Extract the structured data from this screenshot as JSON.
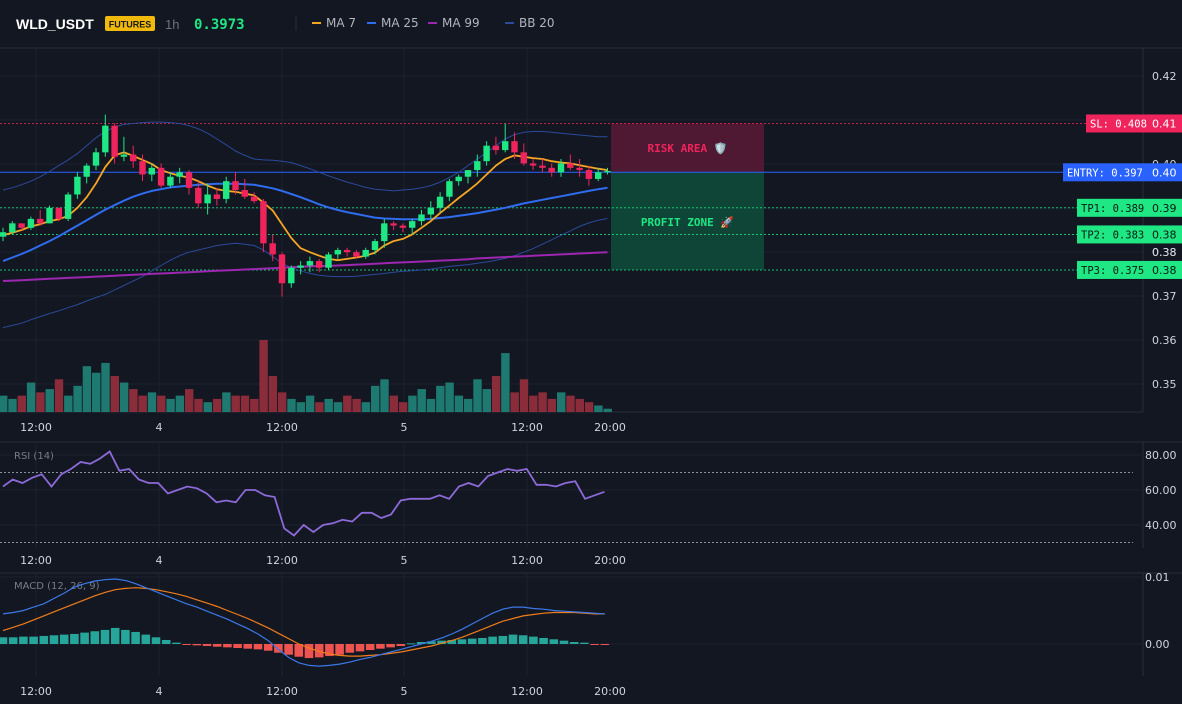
{
  "header": {
    "symbol": "WLD_USDT",
    "badge": "FUTURES",
    "interval": "1h",
    "price": "0.3973",
    "indicators": [
      {
        "label": "MA 7",
        "color": "#f5a623"
      },
      {
        "label": "MA 25",
        "color": "#2f6df0"
      },
      {
        "label": "MA 99",
        "color": "#9c27b0"
      },
      {
        "label": "BB 20",
        "color": "#2a4a9a"
      }
    ]
  },
  "colors": {
    "up": "#1ee783",
    "down": "#f0245c",
    "upVol": "#1e7a70",
    "downVol": "#8a2c3a",
    "ma7": "#f5a623",
    "ma25": "#2f6df0",
    "ma99": "#9c27b0",
    "bb": "#2a4a9a",
    "rsi": "#8c6ad8",
    "macd": "#3b78e7",
    "signal": "#f07d1a",
    "histUp": "#26a69a",
    "histDown": "#ef5350",
    "entry": "#2962ff",
    "sl": "#f0245c",
    "tp": "#1ee783"
  },
  "zones": {
    "risk_label": "RISK AREA 🛡️",
    "profit_label": "PROFIT ZONE 🚀"
  },
  "chart_data": [
    {
      "type": "candlestick",
      "yaxis_ticks": [
        "0.42",
        "0.41",
        "0.40",
        "0.38",
        "0.38",
        "0.37",
        "0.36",
        "0.35"
      ],
      "xaxis_ticks": [
        "12:00",
        "4",
        "12:00",
        "5",
        "12:00",
        "20:00"
      ],
      "ylim": [
        0.343,
        0.425
      ],
      "levels": [
        {
          "name": "SL",
          "label": "SL: 0.408",
          "value": 0.408,
          "axis_label": "0.41"
        },
        {
          "name": "ENTRY",
          "label": "ENTRY: 0.397",
          "value": 0.397,
          "axis_label": "0.40"
        },
        {
          "name": "TP1",
          "label": "TP1: 0.389",
          "value": 0.389,
          "axis_label": "0.39"
        },
        {
          "name": "TP2",
          "label": "TP2: 0.383",
          "value": 0.383,
          "axis_label": "0.38"
        },
        {
          "name": "TP3",
          "label": "TP3: 0.375",
          "value": 0.375,
          "axis_label": "0.38"
        }
      ],
      "candles": [
        [
          0.3825,
          0.3845,
          0.3815,
          0.3835
        ],
        [
          0.3835,
          0.386,
          0.383,
          0.3855
        ],
        [
          0.3855,
          0.3855,
          0.384,
          0.3845
        ],
        [
          0.3845,
          0.387,
          0.384,
          0.3865
        ],
        [
          0.3865,
          0.3885,
          0.385,
          0.3855
        ],
        [
          0.3855,
          0.3895,
          0.3855,
          0.389
        ],
        [
          0.389,
          0.389,
          0.386,
          0.3865
        ],
        [
          0.3865,
          0.3925,
          0.386,
          0.392
        ],
        [
          0.392,
          0.397,
          0.391,
          0.396
        ],
        [
          0.396,
          0.399,
          0.3945,
          0.3985
        ],
        [
          0.3985,
          0.4025,
          0.3975,
          0.4015
        ],
        [
          0.4015,
          0.41,
          0.4005,
          0.4075
        ],
        [
          0.4075,
          0.408,
          0.399,
          0.4005
        ],
        [
          0.4005,
          0.405,
          0.3995,
          0.401
        ],
        [
          0.401,
          0.403,
          0.398,
          0.3995
        ],
        [
          0.3995,
          0.401,
          0.395,
          0.3965
        ],
        [
          0.3965,
          0.399,
          0.395,
          0.398
        ],
        [
          0.398,
          0.399,
          0.3935,
          0.394
        ],
        [
          0.394,
          0.397,
          0.3935,
          0.396
        ],
        [
          0.396,
          0.398,
          0.3945,
          0.397
        ],
        [
          0.397,
          0.3975,
          0.392,
          0.3935
        ],
        [
          0.3935,
          0.395,
          0.389,
          0.39
        ],
        [
          0.39,
          0.3945,
          0.3875,
          0.392
        ],
        [
          0.392,
          0.3935,
          0.3895,
          0.391
        ],
        [
          0.391,
          0.396,
          0.39,
          0.395
        ],
        [
          0.395,
          0.397,
          0.392,
          0.393
        ],
        [
          0.393,
          0.3955,
          0.391,
          0.3915
        ],
        [
          0.3915,
          0.3925,
          0.39,
          0.3905
        ],
        [
          0.3905,
          0.391,
          0.379,
          0.381
        ],
        [
          0.381,
          0.383,
          0.377,
          0.3785
        ],
        [
          0.3785,
          0.379,
          0.369,
          0.372
        ],
        [
          0.372,
          0.376,
          0.371,
          0.3755
        ],
        [
          0.3755,
          0.377,
          0.374,
          0.376
        ],
        [
          0.376,
          0.378,
          0.3745,
          0.377
        ],
        [
          0.377,
          0.3775,
          0.3745,
          0.3755
        ],
        [
          0.3755,
          0.379,
          0.375,
          0.3785
        ],
        [
          0.3785,
          0.38,
          0.3775,
          0.3795
        ],
        [
          0.3795,
          0.38,
          0.378,
          0.379
        ],
        [
          0.379,
          0.3795,
          0.3775,
          0.378
        ],
        [
          0.378,
          0.38,
          0.3775,
          0.3795
        ],
        [
          0.3795,
          0.382,
          0.3785,
          0.3815
        ],
        [
          0.3815,
          0.3865,
          0.38,
          0.3855
        ],
        [
          0.3855,
          0.386,
          0.384,
          0.385
        ],
        [
          0.385,
          0.3855,
          0.3835,
          0.3845
        ],
        [
          0.3845,
          0.3865,
          0.383,
          0.386
        ],
        [
          0.386,
          0.3885,
          0.385,
          0.3875
        ],
        [
          0.3875,
          0.3905,
          0.3865,
          0.389
        ],
        [
          0.389,
          0.3925,
          0.388,
          0.3915
        ],
        [
          0.3915,
          0.3955,
          0.3905,
          0.395
        ],
        [
          0.395,
          0.3965,
          0.394,
          0.396
        ],
        [
          0.396,
          0.3975,
          0.3945,
          0.3975
        ],
        [
          0.3975,
          0.401,
          0.396,
          0.3995
        ],
        [
          0.3995,
          0.404,
          0.3985,
          0.403
        ],
        [
          0.403,
          0.405,
          0.401,
          0.402
        ],
        [
          0.402,
          0.408,
          0.4015,
          0.404
        ],
        [
          0.404,
          0.406,
          0.4,
          0.4015
        ],
        [
          0.4015,
          0.4035,
          0.3985,
          0.399
        ],
        [
          0.399,
          0.4,
          0.3975,
          0.3985
        ],
        [
          0.3985,
          0.4,
          0.397,
          0.398
        ],
        [
          0.398,
          0.399,
          0.396,
          0.397
        ],
        [
          0.397,
          0.4,
          0.396,
          0.399
        ],
        [
          0.399,
          0.401,
          0.3975,
          0.398
        ],
        [
          0.398,
          0.4,
          0.396,
          0.3975
        ],
        [
          0.3975,
          0.3985,
          0.394,
          0.3955
        ],
        [
          0.3955,
          0.398,
          0.395,
          0.397
        ],
        [
          0.397,
          0.398,
          0.3965,
          0.3973
        ]
      ],
      "volume": [
        10,
        8,
        10,
        18,
        12,
        14,
        20,
        10,
        16,
        28,
        24,
        30,
        22,
        18,
        14,
        10,
        12,
        10,
        8,
        10,
        14,
        8,
        6,
        8,
        12,
        10,
        10,
        8,
        44,
        22,
        12,
        8,
        6,
        10,
        6,
        8,
        6,
        10,
        8,
        6,
        16,
        20,
        10,
        6,
        10,
        14,
        8,
        16,
        18,
        10,
        8,
        20,
        14,
        22,
        36,
        12,
        20,
        10,
        12,
        8,
        12,
        10,
        8,
        6,
        4,
        2
      ],
      "ma7": [
        0.3828,
        0.3834,
        0.384,
        0.3848,
        0.3853,
        0.386,
        0.3864,
        0.3872,
        0.389,
        0.3914,
        0.3945,
        0.3982,
        0.4008,
        0.4015,
        0.4007,
        0.3998,
        0.3989,
        0.3975,
        0.3968,
        0.3962,
        0.3958,
        0.395,
        0.394,
        0.3932,
        0.3928,
        0.3926,
        0.3922,
        0.3918,
        0.3902,
        0.3884,
        0.3853,
        0.3822,
        0.3799,
        0.379,
        0.3782,
        0.3775,
        0.3772,
        0.3775,
        0.3778,
        0.3782,
        0.3789,
        0.3805,
        0.3815,
        0.382,
        0.383,
        0.3845,
        0.386,
        0.3878,
        0.3895,
        0.3912,
        0.3928,
        0.3945,
        0.3965,
        0.3985,
        0.4,
        0.4008,
        0.4005,
        0.4002,
        0.4,
        0.3995,
        0.3992,
        0.399,
        0.3986,
        0.3982,
        0.3978,
        0.3975
      ],
      "ma25": [
        0.377,
        0.3778,
        0.3786,
        0.3795,
        0.3805,
        0.3815,
        0.3826,
        0.3838,
        0.385,
        0.3862,
        0.3874,
        0.3886,
        0.3896,
        0.3906,
        0.3915,
        0.3922,
        0.3928,
        0.3932,
        0.3936,
        0.3938,
        0.394,
        0.3942,
        0.3943,
        0.3944,
        0.3944,
        0.3944,
        0.3943,
        0.3942,
        0.3938,
        0.3934,
        0.3928,
        0.3921,
        0.3914,
        0.3906,
        0.3898,
        0.3891,
        0.3885,
        0.388,
        0.3876,
        0.3872,
        0.3868,
        0.3866,
        0.3865,
        0.3864,
        0.3864,
        0.3864,
        0.3865,
        0.3867,
        0.3869,
        0.3872,
        0.3875,
        0.3878,
        0.3882,
        0.3886,
        0.389,
        0.3895,
        0.39,
        0.3904,
        0.3908,
        0.3912,
        0.3916,
        0.392,
        0.3924,
        0.3928,
        0.3932,
        0.3935
      ],
      "ma99": [
        0.3725,
        0.3726,
        0.3727,
        0.3728,
        0.3729,
        0.373,
        0.3731,
        0.3732,
        0.3733,
        0.3734,
        0.3735,
        0.3736,
        0.3737,
        0.3738,
        0.3739,
        0.374,
        0.3741,
        0.3742,
        0.3743,
        0.3744,
        0.3745,
        0.3746,
        0.3747,
        0.3748,
        0.3749,
        0.375,
        0.3751,
        0.3752,
        0.3753,
        0.3754,
        0.3755,
        0.3756,
        0.3757,
        0.3758,
        0.3759,
        0.3759,
        0.376,
        0.3761,
        0.3762,
        0.3763,
        0.3764,
        0.3765,
        0.3766,
        0.3767,
        0.3768,
        0.3769,
        0.377,
        0.3771,
        0.3772,
        0.3773,
        0.3774,
        0.3776,
        0.3777,
        0.3778,
        0.3779,
        0.378,
        0.3781,
        0.3782,
        0.3783,
        0.3784,
        0.3785,
        0.3786,
        0.3787,
        0.3788,
        0.3789,
        0.379
      ],
      "bb_upper": [
        0.393,
        0.3935,
        0.3942,
        0.395,
        0.396,
        0.3972,
        0.3985,
        0.3998,
        0.4012,
        0.403,
        0.4048,
        0.4062,
        0.4072,
        0.4078,
        0.408,
        0.4082,
        0.4083,
        0.4083,
        0.4082,
        0.408,
        0.4075,
        0.4068,
        0.4058,
        0.4045,
        0.4032,
        0.4018,
        0.4008,
        0.4,
        0.3998,
        0.3997,
        0.3995,
        0.3992,
        0.3985,
        0.3978,
        0.397,
        0.3962,
        0.3955,
        0.3948,
        0.3942,
        0.3936,
        0.3932,
        0.393,
        0.3928,
        0.393,
        0.3932,
        0.3935,
        0.394,
        0.3948,
        0.3958,
        0.397,
        0.3985,
        0.4,
        0.4015,
        0.403,
        0.4045,
        0.4055,
        0.406,
        0.4062,
        0.4062,
        0.406,
        0.4058,
        0.4056,
        0.4054,
        0.4052,
        0.405,
        0.405
      ],
      "bb_lower": [
        0.362,
        0.3625,
        0.363,
        0.3638,
        0.3645,
        0.3652,
        0.3658,
        0.3665,
        0.3672,
        0.368,
        0.3688,
        0.3695,
        0.3705,
        0.3715,
        0.3725,
        0.3735,
        0.3748,
        0.376,
        0.3772,
        0.3782,
        0.379,
        0.3795,
        0.38,
        0.3805,
        0.3808,
        0.381,
        0.3808,
        0.3805,
        0.3795,
        0.378,
        0.3765,
        0.3755,
        0.3748,
        0.3742,
        0.3738,
        0.3736,
        0.3735,
        0.3735,
        0.3736,
        0.3738,
        0.374,
        0.3742,
        0.3745,
        0.3747,
        0.3748,
        0.375,
        0.3752,
        0.3755,
        0.3758,
        0.376,
        0.3762,
        0.3765,
        0.3768,
        0.3772,
        0.3776,
        0.3782,
        0.379,
        0.3798,
        0.3808,
        0.3818,
        0.3828,
        0.3838,
        0.3848,
        0.3856,
        0.3862,
        0.3866
      ]
    },
    {
      "type": "line",
      "title": "RSI (14)",
      "ylim": [
        30,
        85
      ],
      "yaxis_ticks": [
        "80.00",
        "60.00",
        "40.00"
      ],
      "xaxis_ticks": [
        "12:00",
        "4",
        "12:00",
        "5",
        "12:00",
        "20:00"
      ],
      "levels": [
        70,
        30
      ],
      "values": [
        62,
        66,
        64,
        67,
        69,
        62,
        69,
        72,
        76,
        75,
        78,
        82,
        71,
        72,
        66,
        64,
        64,
        58,
        60,
        62,
        61,
        58,
        53,
        54,
        53,
        60,
        60,
        57,
        56,
        38,
        34,
        40,
        36,
        40,
        41,
        43,
        42,
        47,
        47,
        44,
        46,
        54,
        55,
        55,
        55,
        57,
        55,
        62,
        64,
        62,
        68,
        70,
        72,
        71,
        72,
        63,
        63,
        62,
        64,
        65,
        55,
        57,
        59
      ],
      "label_lines": []
    },
    {
      "type": "line",
      "title": "MACD (12, 26, 9)",
      "ylim": [
        -0.0085,
        0.0125
      ],
      "yaxis_ticks": [
        "0.01",
        "0.00"
      ],
      "xaxis_ticks": [
        "12:00",
        "4",
        "12:00",
        "5",
        "12:00",
        "20:00"
      ],
      "macd": [
        0.0045,
        0.0047,
        0.005,
        0.0055,
        0.006,
        0.0068,
        0.0076,
        0.0085,
        0.009,
        0.0094,
        0.0096,
        0.0097,
        0.0095,
        0.009,
        0.0084,
        0.0078,
        0.0072,
        0.0066,
        0.006,
        0.0055,
        0.0049,
        0.0043,
        0.0037,
        0.003,
        0.0023,
        0.0015,
        0.0005,
        -0.0008,
        -0.002,
        -0.0028,
        -0.0032,
        -0.0033,
        -0.0032,
        -0.003,
        -0.0027,
        -0.0023,
        -0.002,
        -0.0016,
        -0.0012,
        -0.0008,
        -0.0004,
        0.0,
        0.0004,
        0.0009,
        0.0015,
        0.0022,
        0.003,
        0.0038,
        0.0046,
        0.0052,
        0.0055,
        0.0055,
        0.0053,
        0.0052,
        0.005,
        0.0049,
        0.0048,
        0.0047,
        0.0046,
        0.0045
      ],
      "signal": [
        0.002,
        0.0025,
        0.003,
        0.0036,
        0.0042,
        0.0048,
        0.0054,
        0.006,
        0.0066,
        0.0072,
        0.0077,
        0.0081,
        0.0083,
        0.0084,
        0.0083,
        0.0081,
        0.0078,
        0.0075,
        0.0071,
        0.0066,
        0.0061,
        0.0056,
        0.005,
        0.0044,
        0.0038,
        0.0031,
        0.0024,
        0.0016,
        0.0008,
        0.0,
        -0.0006,
        -0.0011,
        -0.0015,
        -0.0017,
        -0.0018,
        -0.0018,
        -0.0017,
        -0.0016,
        -0.0014,
        -0.0012,
        -0.0009,
        -0.0006,
        -0.0003,
        0.0001,
        0.0005,
        0.001,
        0.0016,
        0.0022,
        0.0028,
        0.0034,
        0.0038,
        0.0042,
        0.0044,
        0.0046,
        0.0047,
        0.0047,
        0.0047,
        0.0046,
        0.0045,
        0.0045
      ],
      "histogram": [
        0.001,
        0.001,
        0.0011,
        0.0011,
        0.0012,
        0.0013,
        0.0014,
        0.0015,
        0.0017,
        0.0019,
        0.0021,
        0.0024,
        0.0021,
        0.0018,
        0.0014,
        0.001,
        0.0006,
        0.0002,
        -0.0001,
        -0.0002,
        -0.0003,
        -0.0004,
        -0.0005,
        -0.0006,
        -0.0007,
        -0.0008,
        -0.001,
        -0.0013,
        -0.0016,
        -0.0019,
        -0.0021,
        -0.002,
        -0.0018,
        -0.0016,
        -0.0013,
        -0.0011,
        -0.0009,
        -0.0007,
        -0.0005,
        -0.0003,
        0.0001,
        0.0003,
        0.0004,
        0.0005,
        0.0006,
        0.0007,
        0.0008,
        0.0009,
        0.0011,
        0.0012,
        0.0014,
        0.0013,
        0.0011,
        0.0009,
        0.0007,
        0.0005,
        0.0003,
        0.0002,
        -0.0001,
        -0.0001
      ]
    }
  ]
}
